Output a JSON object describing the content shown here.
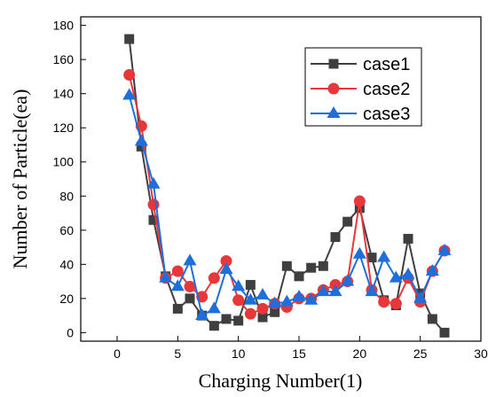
{
  "chart_data": {
    "type": "line",
    "title": "",
    "xlabel": "Charging Number(1)",
    "ylabel": "Number of Particle(ea)",
    "xlim": [
      -3,
      30
    ],
    "ylim": [
      -5,
      185
    ],
    "xticks": [
      0,
      5,
      10,
      15,
      20,
      25,
      30
    ],
    "yticks": [
      0,
      20,
      40,
      60,
      80,
      100,
      120,
      140,
      160,
      180
    ],
    "grid": false,
    "legend_position": "top-right",
    "x": [
      1,
      2,
      3,
      4,
      5,
      6,
      7,
      8,
      9,
      10,
      11,
      12,
      13,
      14,
      15,
      16,
      17,
      18,
      19,
      20,
      21,
      22,
      23,
      24,
      25,
      26,
      27
    ],
    "series": [
      {
        "name": "case1",
        "color": "#3f3f3f",
        "marker": "square",
        "values": [
          172,
          109,
          66,
          33,
          14,
          20,
          10,
          4,
          8,
          7,
          28,
          9,
          12,
          39,
          33,
          38,
          39,
          56,
          65,
          73,
          44,
          19,
          16,
          55,
          23,
          8,
          0
        ]
      },
      {
        "name": "case2",
        "color": "#e8373a",
        "marker": "circle",
        "values": [
          151,
          121,
          75,
          32,
          36,
          27,
          21,
          32,
          42,
          19,
          11,
          14,
          17,
          15,
          20,
          20,
          25,
          28,
          30,
          77,
          25,
          18,
          17,
          32,
          18,
          36,
          48
        ]
      },
      {
        "name": "case3",
        "color": "#1e6fd9",
        "marker": "triangle",
        "values": [
          139,
          112,
          87,
          32,
          27,
          42,
          10,
          14,
          37,
          27,
          19,
          22,
          17,
          18,
          21,
          19,
          24,
          24,
          30,
          46,
          24,
          44,
          32,
          34,
          20,
          36,
          48
        ]
      }
    ]
  }
}
